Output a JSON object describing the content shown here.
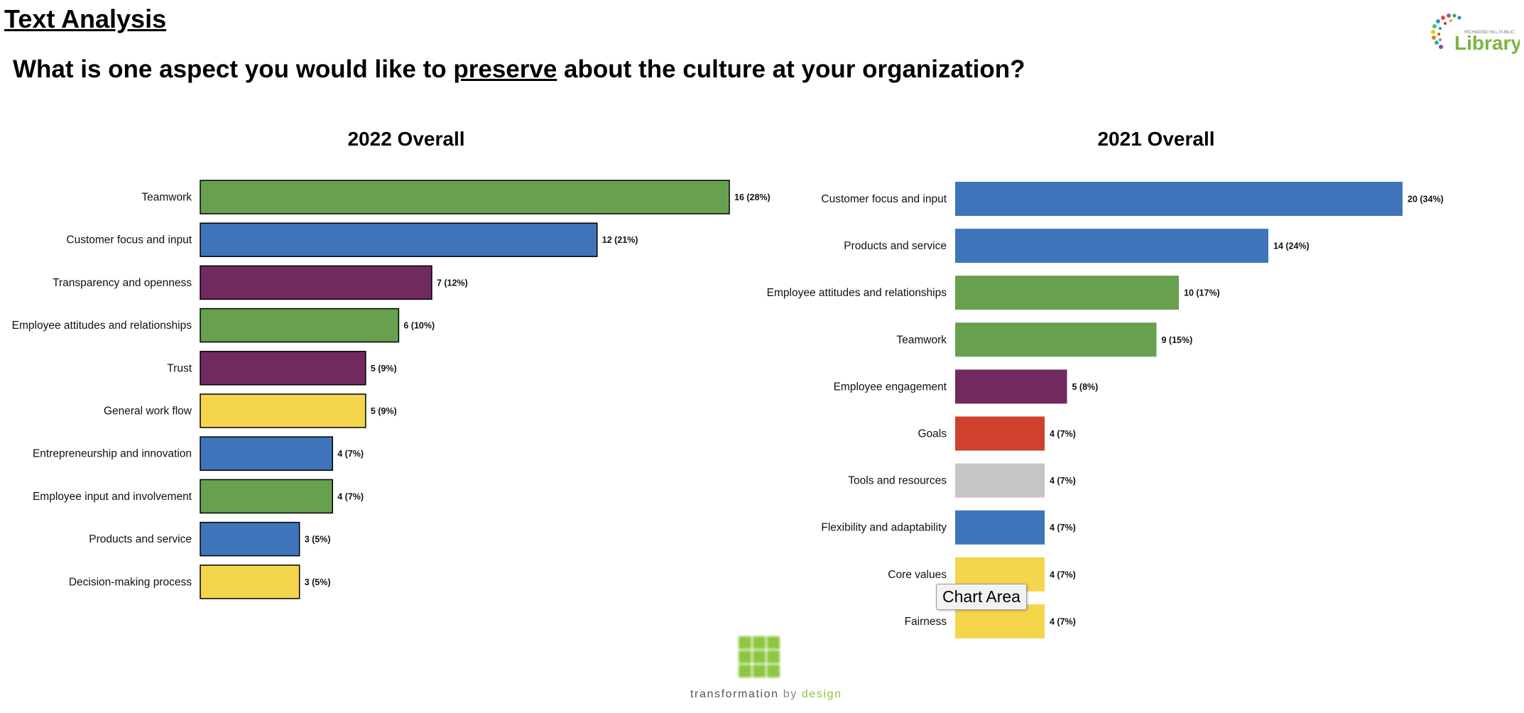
{
  "header": {
    "page_heading": "Text Analysis",
    "question_before": "What is one aspect you would like to ",
    "question_emphasis": "preserve",
    "question_after": " about the culture at your organization?"
  },
  "logos": {
    "library_small": "RICHMOND HILL PUBLIC",
    "library_word": "Library",
    "tbd_word_1": "transformation",
    "tbd_word_2": " by ",
    "tbd_word_3": "design"
  },
  "tooltip": {
    "text": "Chart Area"
  },
  "colors": {
    "green": "#67a14f",
    "blue": "#3f74ba",
    "purple": "#712a5f",
    "yellow": "#f4d54b",
    "red": "#d0402e",
    "gray": "#c5c4c6"
  },
  "chart_data": [
    {
      "type": "bar",
      "orientation": "horizontal",
      "title": "2022 Overall",
      "categories": [
        "Teamwork",
        "Customer focus and input",
        "Transparency and openness",
        "Employee attitudes and relationships",
        "Trust",
        "General work flow",
        "Entrepreneurship and innovation",
        "Employee input and involvement",
        "Products and service",
        "Decision-making process"
      ],
      "values": [
        16,
        12,
        7,
        6,
        5,
        5,
        4,
        4,
        3,
        3
      ],
      "data_labels": [
        "16 (28%)",
        "12 (21%)",
        "7 (12%)",
        "6 (10%)",
        "5 (9%)",
        "5 (9%)",
        "4 (7%)",
        "4 (7%)",
        "3 (5%)",
        "3 (5%)"
      ],
      "bar_colors": [
        "green",
        "blue",
        "purple",
        "green",
        "purple",
        "yellow",
        "blue",
        "green",
        "blue",
        "yellow"
      ],
      "bar_outline": true,
      "xlim": [
        0,
        16
      ],
      "grid": false,
      "legend": "none"
    },
    {
      "type": "bar",
      "orientation": "horizontal",
      "title": "2021 Overall",
      "categories": [
        "Customer focus and input",
        "Products and service",
        "Employee attitudes and relationships",
        "Teamwork",
        "Employee engagement",
        "Goals",
        "Tools and resources",
        "Flexibility and adaptability",
        "Core values",
        "Fairness"
      ],
      "values": [
        20,
        14,
        10,
        9,
        5,
        4,
        4,
        4,
        4,
        4
      ],
      "data_labels": [
        "20  (34%)",
        "14  (24%)",
        "10  (17%)",
        "9  (15%)",
        "5  (8%)",
        "4  (7%)",
        "4  (7%)",
        "4  (7%)",
        "4  (7%)",
        "4  (7%)"
      ],
      "bar_colors": [
        "blue",
        "blue",
        "green",
        "green",
        "purple",
        "red",
        "gray",
        "blue",
        "yellow",
        "yellow"
      ],
      "bar_outline": false,
      "xlim": [
        0,
        20
      ],
      "grid": false,
      "legend": "none"
    }
  ]
}
